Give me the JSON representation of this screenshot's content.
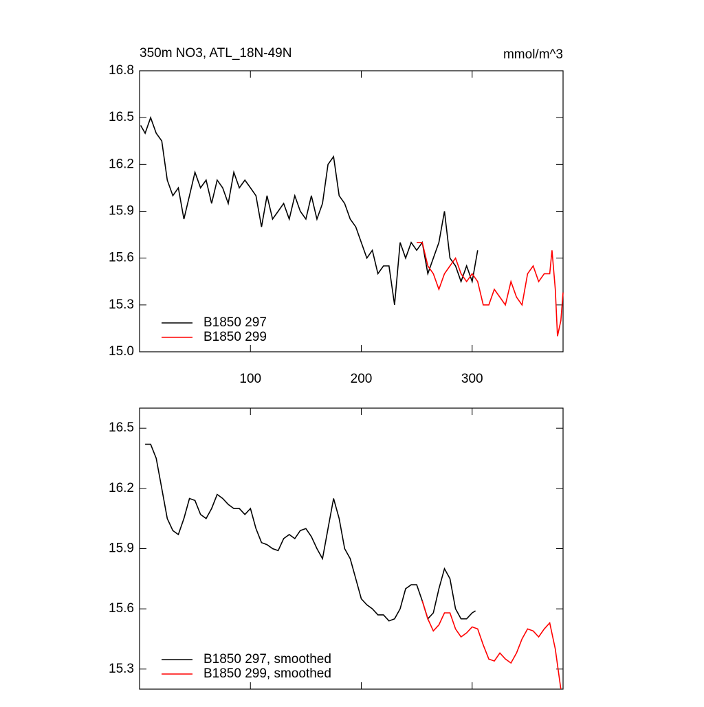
{
  "chart_data": [
    {
      "type": "line",
      "title": "350m NO3, ATL_18N-49N",
      "unit_label": "mmol/m^3",
      "xlim": [
        0,
        382
      ],
      "xticks": [
        100,
        200,
        300
      ],
      "show_xtick_labels": true,
      "ylim": [
        15.0,
        16.8
      ],
      "yticks": [
        {
          "value": 15.0,
          "label": "15.0"
        },
        15.3,
        15.6,
        15.9,
        16.2,
        16.5,
        16.8
      ],
      "series": [
        {
          "name": "B1850 297",
          "color": "#000000",
          "x": [
            1,
            5,
            10,
            15,
            20,
            25,
            30,
            35,
            40,
            45,
            50,
            55,
            60,
            65,
            70,
            75,
            80,
            85,
            90,
            95,
            100,
            105,
            110,
            115,
            120,
            125,
            130,
            135,
            140,
            145,
            150,
            155,
            160,
            165,
            170,
            175,
            180,
            185,
            190,
            195,
            200,
            205,
            210,
            215,
            220,
            225,
            230,
            235,
            240,
            245,
            250,
            255,
            260,
            265,
            270,
            275,
            280,
            285,
            290,
            295,
            300,
            305
          ],
          "values": [
            16.45,
            16.4,
            16.5,
            16.4,
            16.35,
            16.1,
            16.0,
            16.05,
            15.85,
            16.0,
            16.15,
            16.05,
            16.1,
            15.95,
            16.1,
            16.05,
            15.95,
            16.15,
            16.05,
            16.1,
            16.05,
            16.0,
            15.8,
            16.0,
            15.85,
            15.9,
            15.95,
            15.85,
            16.0,
            15.9,
            15.85,
            16.0,
            15.85,
            15.95,
            16.2,
            16.25,
            16.0,
            15.95,
            15.85,
            15.8,
            15.7,
            15.6,
            15.65,
            15.5,
            15.55,
            15.55,
            15.3,
            15.7,
            15.6,
            15.7,
            15.65,
            15.7,
            15.5,
            15.6,
            15.7,
            15.9,
            15.6,
            15.55,
            15.45,
            15.55,
            15.45,
            15.65
          ]
        },
        {
          "name": "B1850 299",
          "color": "#ff0000",
          "x": [
            250,
            255,
            260,
            265,
            270,
            275,
            280,
            285,
            290,
            295,
            300,
            305,
            310,
            315,
            320,
            325,
            330,
            335,
            340,
            345,
            350,
            355,
            360,
            365,
            370,
            372,
            375,
            377,
            380,
            382
          ],
          "values": [
            15.7,
            15.7,
            15.55,
            15.5,
            15.4,
            15.5,
            15.55,
            15.6,
            15.5,
            15.45,
            15.5,
            15.45,
            15.3,
            15.3,
            15.4,
            15.35,
            15.3,
            15.45,
            15.35,
            15.3,
            15.5,
            15.55,
            15.45,
            15.5,
            15.5,
            15.65,
            15.4,
            15.1,
            15.2,
            15.38
          ]
        }
      ]
    },
    {
      "type": "line",
      "xlim": [
        0,
        382
      ],
      "xticks": [
        100,
        200,
        300
      ],
      "show_xtick_labels": false,
      "ylim": [
        15.2,
        16.6
      ],
      "yticks": [
        15.3,
        15.6,
        15.9,
        16.2,
        16.5
      ],
      "series": [
        {
          "name": "B1850 297, smoothed",
          "color": "#000000",
          "x": [
            5,
            10,
            15,
            20,
            25,
            30,
            35,
            40,
            45,
            50,
            55,
            60,
            65,
            70,
            75,
            80,
            85,
            90,
            95,
            100,
            105,
            110,
            115,
            120,
            125,
            130,
            135,
            140,
            145,
            150,
            155,
            160,
            165,
            170,
            175,
            180,
            185,
            190,
            195,
            200,
            205,
            210,
            215,
            220,
            225,
            230,
            235,
            240,
            245,
            250,
            255,
            260,
            265,
            270,
            275,
            280,
            285,
            290,
            295,
            300,
            303
          ],
          "values": [
            16.42,
            16.42,
            16.35,
            16.2,
            16.05,
            15.99,
            15.97,
            16.05,
            16.15,
            16.14,
            16.07,
            16.05,
            16.1,
            16.17,
            16.15,
            16.12,
            16.1,
            16.1,
            16.07,
            16.1,
            16.0,
            15.93,
            15.92,
            15.9,
            15.89,
            15.95,
            15.97,
            15.95,
            15.99,
            16.0,
            15.96,
            15.9,
            15.85,
            16.0,
            16.15,
            16.05,
            15.9,
            15.85,
            15.75,
            15.65,
            15.62,
            15.6,
            15.57,
            15.57,
            15.54,
            15.55,
            15.6,
            15.7,
            15.72,
            15.72,
            15.64,
            15.55,
            15.58,
            15.7,
            15.8,
            15.75,
            15.6,
            15.55,
            15.55,
            15.58,
            15.59
          ]
        },
        {
          "name": "B1850 299, smoothed",
          "color": "#ff0000",
          "x": [
            255,
            260,
            265,
            270,
            275,
            280,
            285,
            290,
            295,
            300,
            305,
            310,
            315,
            320,
            325,
            330,
            335,
            340,
            345,
            350,
            355,
            360,
            365,
            370,
            375,
            380
          ],
          "values": [
            15.64,
            15.55,
            15.49,
            15.52,
            15.58,
            15.58,
            15.5,
            15.46,
            15.48,
            15.51,
            15.5,
            15.42,
            15.35,
            15.34,
            15.38,
            15.35,
            15.33,
            15.38,
            15.45,
            15.5,
            15.49,
            15.46,
            15.5,
            15.53,
            15.4,
            15.2
          ]
        }
      ]
    }
  ]
}
